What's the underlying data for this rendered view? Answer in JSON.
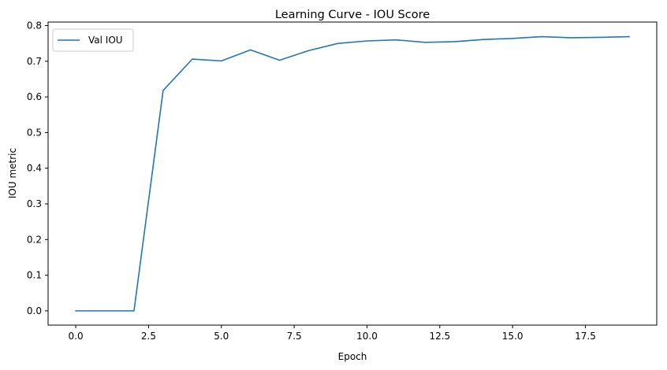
{
  "chart_data": {
    "type": "line",
    "title": "Learning Curve - IOU Score",
    "xlabel": "Epoch",
    "ylabel": "IOU metric",
    "xlim": [
      -0.95,
      19.95
    ],
    "ylim": [
      -0.04,
      0.81
    ],
    "xticks": [
      0,
      2.5,
      5,
      7.5,
      10,
      12.5,
      15,
      17.5
    ],
    "xtick_labels": [
      "0.0",
      "2.5",
      "5.0",
      "7.5",
      "10.0",
      "12.5",
      "15.0",
      "17.5"
    ],
    "yticks": [
      0,
      0.1,
      0.2,
      0.3,
      0.4,
      0.5,
      0.6,
      0.7,
      0.8
    ],
    "ytick_labels": [
      "0.0",
      "0.1",
      "0.2",
      "0.3",
      "0.4",
      "0.5",
      "0.6",
      "0.7",
      "0.8"
    ],
    "grid": false,
    "legend_position": "upper-left",
    "x": [
      0,
      1,
      2,
      3,
      4,
      5,
      6,
      7,
      8,
      9,
      10,
      11,
      12,
      13,
      14,
      15,
      16,
      17,
      18,
      19
    ],
    "series": [
      {
        "name": "Val IOU",
        "color": "#1f77b4",
        "values": [
          0.0,
          0.0,
          0.0,
          0.618,
          0.706,
          0.701,
          0.732,
          0.703,
          0.73,
          0.75,
          0.757,
          0.76,
          0.753,
          0.755,
          0.761,
          0.764,
          0.769,
          0.766,
          0.767,
          0.769
        ]
      }
    ]
  }
}
